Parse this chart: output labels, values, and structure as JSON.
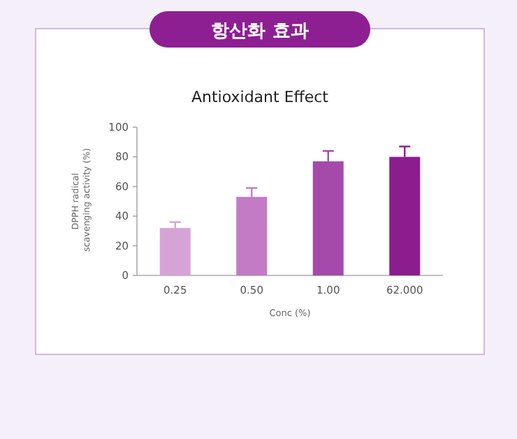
{
  "chart_data": {
    "type": "bar",
    "title": "항산화 효과",
    "subtitle": "Antioxidant Effect",
    "xlabel": "Conc (%)",
    "ylabel": "DPPH radical scavenging activity (%)",
    "categories": [
      "0.25",
      "0.50",
      "1.00",
      "62.000"
    ],
    "values": [
      32,
      53,
      77,
      80
    ],
    "errors": [
      [
        32,
        36
      ],
      [
        53,
        59
      ],
      [
        77,
        84
      ],
      [
        80,
        87
      ]
    ],
    "colors": [
      "#d6a3d6",
      "#c27bc4",
      "#a54aab",
      "#8c1d8f"
    ],
    "ylim": [
      0,
      100
    ],
    "yticks": [
      0,
      20,
      40,
      60,
      80,
      100
    ]
  }
}
